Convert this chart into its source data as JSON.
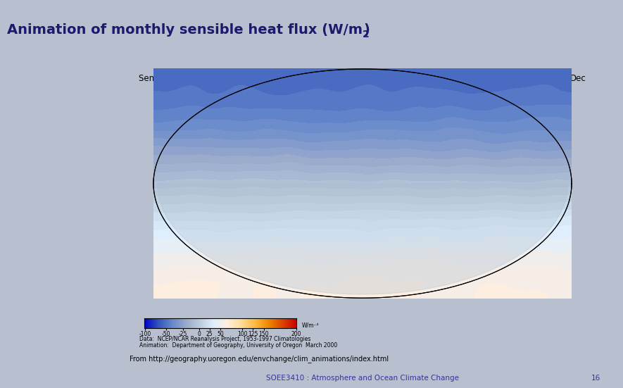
{
  "title": "Animation of monthly sensible heat flux (W/m²)",
  "title_superscript": "2",
  "bg_color": "#b8c0d0",
  "slide_bg": "#b8c0d0",
  "box_bg": "#ffffff",
  "box_border": "#000000",
  "inner_label_left": "Sensible Heat Flux",
  "inner_label_right": "Dec",
  "inner_label_color": "#000000",
  "colorbar_ticks": [
    "-100",
    "-50",
    "-25",
    "0",
    "25",
    "50",
    "100",
    "125",
    "150",
    "200 W/m⁻²"
  ],
  "data_credit_1": "Data:  NCEP/NCAR Reanalysis Project, 1953-1997 Climatologies",
  "data_credit_2": "Animation:  Department of Geography, University of Oregon  March 2000",
  "url_text": "From http://geography.uoregon.edu/envchange/clim_animations/index.html",
  "footer_text": "SOEE3410 : Atmosphere and Ocean Climate Change",
  "footer_number": "16",
  "footer_line_color": "#3333aa",
  "footer_text_color": "#333399",
  "title_color": "#1a1a6e",
  "colorbar_colors": [
    "#0000cc",
    "#3366cc",
    "#6699cc",
    "#99bbdd",
    "#ccddee",
    "#eeeedd",
    "#eeee99",
    "#ddcc66",
    "#cc9933",
    "#dd6600",
    "#cc3300"
  ],
  "image_placeholder_color": "#e0e0e0",
  "map_url": "https://geography.uoregon.edu/envchange/clim_animations/index.html"
}
